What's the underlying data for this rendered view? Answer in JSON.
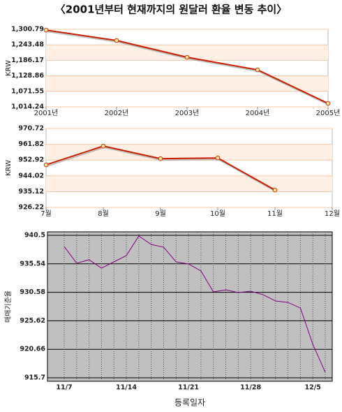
{
  "title": "〈2001년부터 현재까지의 원달러 환율 변동 추이〉",
  "chart_data": [
    {
      "type": "line",
      "y_label": "KRW",
      "categories": [
        "2001년",
        "2002년",
        "2003년",
        "2004년",
        "2005년"
      ],
      "series": [
        {
          "color": "#c81e00",
          "values": [
            1298,
            1259.5,
            1197.5,
            1151,
            1027
          ]
        }
      ],
      "ylim": [
        1014.24,
        1300.79
      ],
      "yticks": [
        {
          "value": 1014.24,
          "label": "1,014.24"
        },
        {
          "value": 1071.55,
          "label": "1,071.55"
        },
        {
          "value": 1128.86,
          "label": "1,128.86"
        },
        {
          "value": 1186.17,
          "label": "1,186.17"
        },
        {
          "value": 1243.48,
          "label": "1,243.48"
        },
        {
          "value": 1300.79,
          "label": "1,300.79"
        }
      ],
      "grid": true
    },
    {
      "type": "line",
      "y_label": "KRW",
      "categories": [
        "7월",
        "8월",
        "9월",
        "10월",
        "11월",
        "12월"
      ],
      "series": [
        {
          "color": "#c81e00",
          "values": [
            950.2,
            960.8,
            953.7,
            954.1,
            936.0,
            null
          ]
        }
      ],
      "ylim": [
        926.22,
        970.72
      ],
      "yticks": [
        926.22,
        935.12,
        944.02,
        952.92,
        961.82,
        970.72
      ],
      "grid": true
    },
    {
      "type": "line",
      "y_label": "매매기준율",
      "x_label": "등록일자",
      "categories": [
        "11/7",
        null,
        null,
        null,
        null,
        "11/14",
        null,
        null,
        null,
        null,
        "11/21",
        null,
        null,
        null,
        null,
        "11/28",
        null,
        null,
        null,
        null,
        "12/5",
        null
      ],
      "series": [
        {
          "color": "#800080",
          "values": [
            938.55,
            935.64,
            936.25,
            934.79,
            935.88,
            936.98,
            940.38,
            938.92,
            938.43,
            935.88,
            935.52,
            934.3,
            930.65,
            931.02,
            930.53,
            930.77,
            930.16,
            929.07,
            928.82,
            927.85,
            921.53,
            916.66
          ]
        }
      ],
      "ylim": [
        915.7,
        940.5
      ],
      "yticks": [
        915.7,
        920.66,
        925.62,
        930.58,
        935.54,
        940.5
      ],
      "grid": true
    }
  ]
}
